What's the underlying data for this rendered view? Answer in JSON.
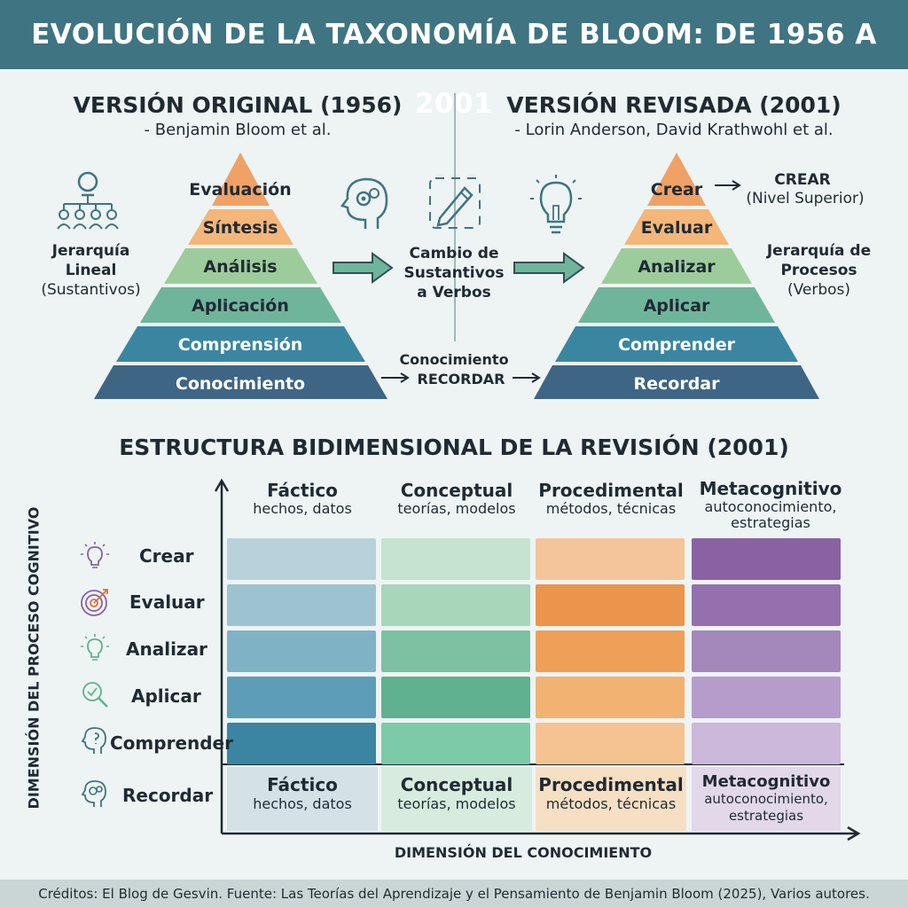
{
  "title": "EVOLUCIÓN DE LA TAXONOMÍA DE BLOOM: DE 1956 A 2001",
  "original": {
    "title": "VERSIÓN ORIGINAL (1956)",
    "authors": "- Benjamin Bloom et al.",
    "side_title": "Jerarquía Lineal",
    "side_sub": "(Sustantivos)",
    "levels": [
      "Evaluación",
      "Síntesis",
      "Análisis",
      "Aplicación",
      "Comprensión",
      "Conocimiento"
    ]
  },
  "revised": {
    "title": "VERSIÓN REVISADA (2001)",
    "authors": "- Lorin Anderson, David Krathwohl et al.",
    "side_title": "Jerarquía de Procesos",
    "side_sub": "(Verbos)",
    "top_title": "CREAR",
    "top_sub": "(Nivel Superior)",
    "levels": [
      "Crear",
      "Evaluar",
      "Analizar",
      "Aplicar",
      "Comprender",
      "Recordar"
    ]
  },
  "middle": {
    "change_label": "Cambio de Sustantivos a Verbos",
    "bottom_top": "Conocimiento",
    "bottom_bottom": "RECORDAR"
  },
  "matrix": {
    "title": "ESTRUCTURA BIDIMENSIONAL DE LA REVISIÓN (2001)",
    "y_axis": "DIMENSIÓN DEL PROCESO COGNITIVO",
    "x_axis": "DIMENSIÓN DEL CONOCIMIENTO",
    "columns": [
      {
        "title": "Fáctico",
        "sub": "hechos, datos"
      },
      {
        "title": "Conceptual",
        "sub": "teorías, modelos"
      },
      {
        "title": "Procedimental",
        "sub": "métodos, técnicas"
      },
      {
        "title": "Metacognitivo",
        "sub": "autoconocimiento, estrategias"
      }
    ],
    "rows": [
      "Crear",
      "Evaluar",
      "Analizar",
      "Aplicar",
      "Comprender",
      "Recordar"
    ],
    "icons": [
      "lightbulb-icon",
      "target-icon",
      "lightbulb-icon",
      "magnifier-icon",
      "head-icon",
      "brain-gears-icon"
    ]
  },
  "footer": "Créditos: El Blog de Gesvin. Fuente: Las Teorías del Aprendizaje y el Pensamiento de Benjamin Bloom (2025), Varios autores.",
  "colors": {
    "header": "#3f7482",
    "pyramid": [
      "#f0a165",
      "#f4b679",
      "#9dcc9c",
      "#6fb59c",
      "#3a86a0",
      "#3f6585"
    ],
    "cols": [
      "#6aa9bd",
      "#7ccaa8",
      "#efa253",
      "#9a73b1"
    ]
  }
}
